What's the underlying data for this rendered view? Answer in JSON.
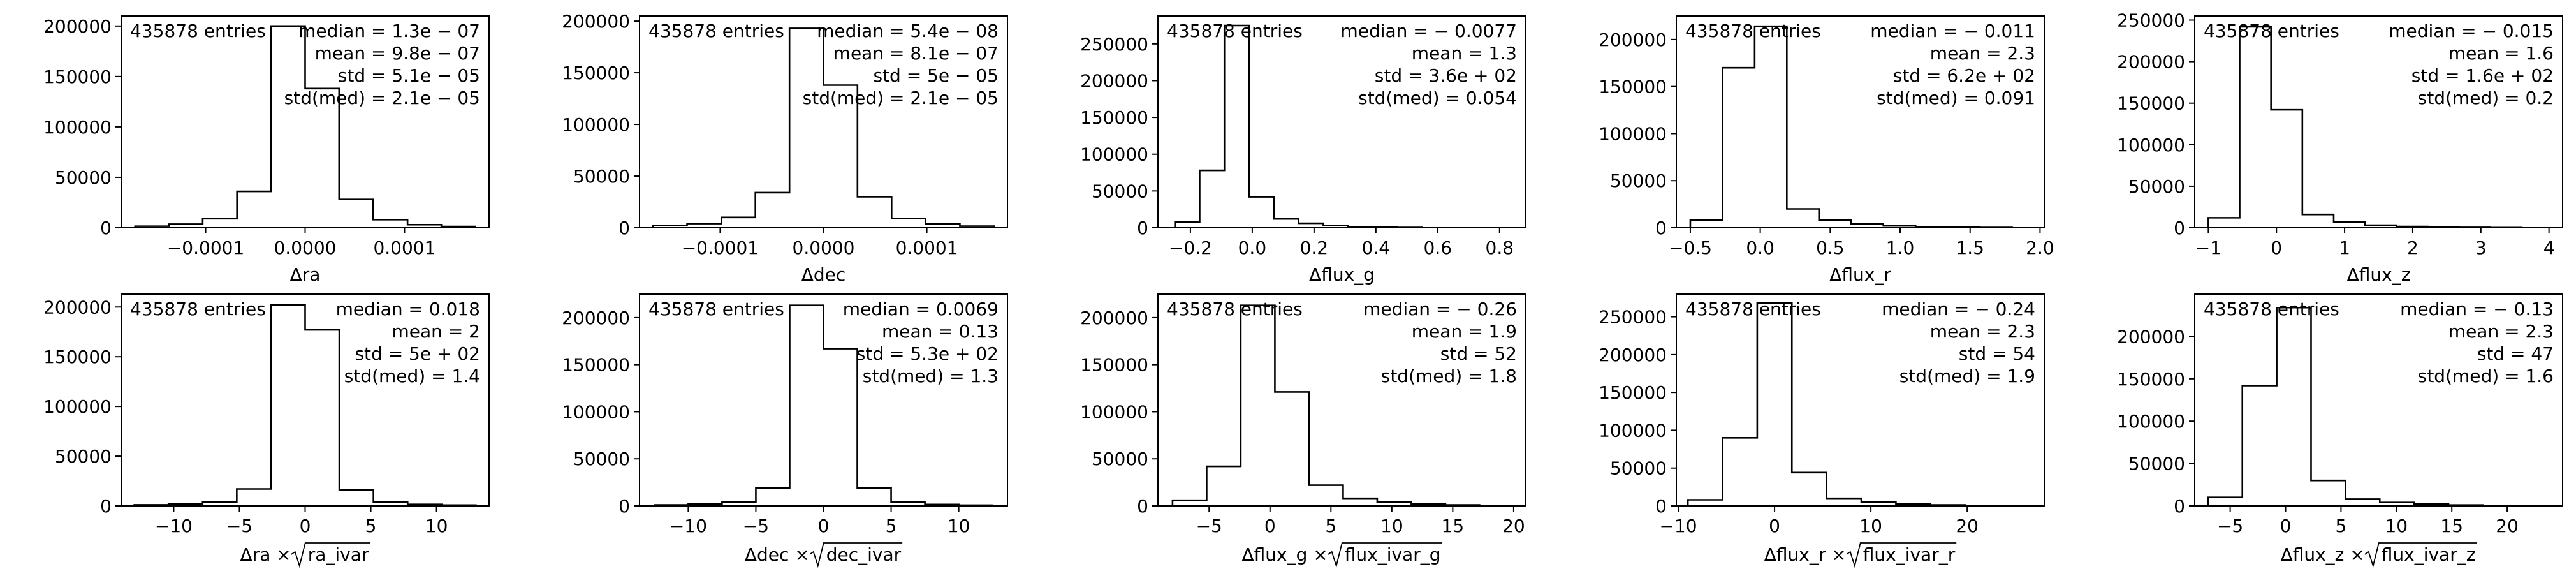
{
  "chart_data": [
    {
      "type": "histogram",
      "xlabel": "Δra",
      "xlim": [
        -0.000185,
        0.000185
      ],
      "ylim": [
        0,
        210000
      ],
      "xticks": [
        {
          "v": -0.0001,
          "label": "−0.0001"
        },
        {
          "v": 0,
          "label": "0.0000"
        },
        {
          "v": 0.0001,
          "label": "0.0001"
        }
      ],
      "yticks": [
        {
          "v": 0,
          "label": "0"
        },
        {
          "v": 50000,
          "label": "50000"
        },
        {
          "v": 100000,
          "label": "100000"
        },
        {
          "v": 150000,
          "label": "150000"
        },
        {
          "v": 200000,
          "label": "200000"
        }
      ],
      "bin_edges": [
        -0.000171,
        -0.000137,
        -0.000103,
        -6.85e-05,
        -3.42e-05,
        0,
        3.42e-05,
        6.85e-05,
        0.000103,
        0.000137,
        0.000171
      ],
      "counts": [
        1500,
        3500,
        9000,
        36000,
        200000,
        138000,
        28000,
        8000,
        3000,
        1200
      ],
      "stats_left": "435878 entries",
      "stats_right": [
        "median = 1.3e − 07",
        "mean = 9.8e − 07",
        "std = 5.1e − 05",
        "std(med) = 2.1e − 05"
      ]
    },
    {
      "type": "histogram",
      "xlabel": "Δdec",
      "xlim": [
        -0.000178,
        0.000178
      ],
      "ylim": [
        0,
        205000
      ],
      "xticks": [
        {
          "v": -0.0001,
          "label": "−0.0001"
        },
        {
          "v": 0,
          "label": "0.0000"
        },
        {
          "v": 0.0001,
          "label": "0.0001"
        }
      ],
      "yticks": [
        {
          "v": 0,
          "label": "0"
        },
        {
          "v": 50000,
          "label": "50000"
        },
        {
          "v": 100000,
          "label": "100000"
        },
        {
          "v": 150000,
          "label": "150000"
        },
        {
          "v": 200000,
          "label": "200000"
        }
      ],
      "bin_edges": [
        -0.000165,
        -0.000132,
        -9.88e-05,
        -6.59e-05,
        -3.29e-05,
        0,
        3.29e-05,
        6.59e-05,
        9.88e-05,
        0.000132,
        0.000165
      ],
      "counts": [
        2000,
        4000,
        10000,
        34000,
        193000,
        138000,
        30000,
        9000,
        3500,
        1500
      ],
      "stats_left": "435878 entries",
      "stats_right": [
        "median = 5.4e − 08",
        "mean = 8.1e − 07",
        "std = 5e − 05",
        "std(med) = 2.1e − 05"
      ]
    },
    {
      "type": "histogram",
      "xlabel": "Δflux_g",
      "xlim": [
        -0.305,
        0.885
      ],
      "ylim": [
        0,
        288000
      ],
      "xticks": [
        {
          "v": -0.2,
          "label": "−0.2"
        },
        {
          "v": 0,
          "label": "0.0"
        },
        {
          "v": 0.2,
          "label": "0.2"
        },
        {
          "v": 0.4,
          "label": "0.4"
        },
        {
          "v": 0.6,
          "label": "0.6"
        },
        {
          "v": 0.8,
          "label": "0.8"
        }
      ],
      "yticks": [
        {
          "v": 0,
          "label": "0"
        },
        {
          "v": 50000,
          "label": "50000"
        },
        {
          "v": 100000,
          "label": "100000"
        },
        {
          "v": 150000,
          "label": "150000"
        },
        {
          "v": 200000,
          "label": "200000"
        },
        {
          "v": 250000,
          "label": "250000"
        }
      ],
      "bin_edges": [
        -0.25,
        -0.17,
        -0.09,
        -0.01,
        0.07,
        0.15,
        0.23,
        0.31,
        0.39,
        0.47,
        0.55
      ],
      "counts": [
        8000,
        78000,
        275000,
        42000,
        12000,
        6000,
        3000,
        1500,
        800,
        400
      ],
      "stats_left": "435878 entries",
      "stats_right": [
        "median = − 0.0077",
        "mean = 1.3",
        "std = 3.6e + 02",
        "std(med) = 0.054"
      ]
    },
    {
      "type": "histogram",
      "xlabel": "Δflux_r",
      "xlim": [
        -0.6,
        2.03
      ],
      "ylim": [
        0,
        225000
      ],
      "xticks": [
        {
          "v": -0.5,
          "label": "−0.5"
        },
        {
          "v": 0,
          "label": "0.0"
        },
        {
          "v": 0.5,
          "label": "0.5"
        },
        {
          "v": 1.0,
          "label": "1.0"
        },
        {
          "v": 1.5,
          "label": "1.5"
        },
        {
          "v": 2.0,
          "label": "2.0"
        }
      ],
      "yticks": [
        {
          "v": 0,
          "label": "0"
        },
        {
          "v": 50000,
          "label": "50000"
        },
        {
          "v": 100000,
          "label": "100000"
        },
        {
          "v": 150000,
          "label": "150000"
        },
        {
          "v": 200000,
          "label": "200000"
        }
      ],
      "bin_edges": [
        -0.5,
        -0.27,
        -0.04,
        0.19,
        0.42,
        0.65,
        0.88,
        1.11,
        1.34,
        1.57,
        1.8
      ],
      "counts": [
        8000,
        170000,
        214000,
        20000,
        8000,
        4000,
        2000,
        1000,
        500,
        300
      ],
      "stats_left": "435878 entries",
      "stats_right": [
        "median = − 0.011",
        "mean = 2.3",
        "std = 6.2e + 02",
        "std(med) = 0.091"
      ]
    },
    {
      "type": "histogram",
      "xlabel": "Δflux_z",
      "xlim": [
        -1.2,
        4.2
      ],
      "ylim": [
        0,
        255000
      ],
      "xticks": [
        {
          "v": -1,
          "label": "−1"
        },
        {
          "v": 0,
          "label": "0"
        },
        {
          "v": 1,
          "label": "1"
        },
        {
          "v": 2,
          "label": "2"
        },
        {
          "v": 3,
          "label": "3"
        },
        {
          "v": 4,
          "label": "4"
        }
      ],
      "yticks": [
        {
          "v": 0,
          "label": "0"
        },
        {
          "v": 50000,
          "label": "50000"
        },
        {
          "v": 100000,
          "label": "100000"
        },
        {
          "v": 150000,
          "label": "150000"
        },
        {
          "v": 200000,
          "label": "200000"
        },
        {
          "v": 250000,
          "label": "250000"
        }
      ],
      "bin_edges": [
        -1.0,
        -0.54,
        -0.08,
        0.38,
        0.84,
        1.3,
        1.76,
        2.22,
        2.68,
        3.14,
        3.6
      ],
      "counts": [
        12000,
        242000,
        142000,
        16000,
        7000,
        3000,
        1500,
        800,
        400,
        200
      ],
      "stats_left": "435878 entries",
      "stats_right": [
        "median = − 0.015",
        "mean = 1.6",
        "std = 1.6e + 02",
        "std(med) = 0.2"
      ]
    },
    {
      "type": "histogram",
      "xlabel_html": {
        "pre": "Δra × ",
        "sqrt": "ra_ivar"
      },
      "xlim": [
        -14,
        14
      ],
      "ylim": [
        0,
        213000
      ],
      "xticks": [
        {
          "v": -10,
          "label": "−10"
        },
        {
          "v": -5,
          "label": "−5"
        },
        {
          "v": 0,
          "label": "0"
        },
        {
          "v": 5,
          "label": "5"
        },
        {
          "v": 10,
          "label": "10"
        }
      ],
      "yticks": [
        {
          "v": 0,
          "label": "0"
        },
        {
          "v": 50000,
          "label": "50000"
        },
        {
          "v": 100000,
          "label": "100000"
        },
        {
          "v": 150000,
          "label": "150000"
        },
        {
          "v": 200000,
          "label": "200000"
        }
      ],
      "bin_edges": [
        -13,
        -10.4,
        -7.8,
        -5.2,
        -2.6,
        0,
        2.6,
        5.2,
        7.8,
        10.4,
        13
      ],
      "counts": [
        1000,
        2000,
        4000,
        17000,
        202000,
        177000,
        16000,
        4000,
        1500,
        800
      ],
      "stats_left": "435878 entries",
      "stats_right": [
        "median = 0.018",
        "mean = 2",
        "std = 5e + 02",
        "std(med) = 1.4"
      ]
    },
    {
      "type": "histogram",
      "xlabel_html": {
        "pre": "Δdec × ",
        "sqrt": "dec_ivar"
      },
      "xlim": [
        -13.6,
        13.6
      ],
      "ylim": [
        0,
        225000
      ],
      "xticks": [
        {
          "v": -10,
          "label": "−10"
        },
        {
          "v": -5,
          "label": "−5"
        },
        {
          "v": 0,
          "label": "0"
        },
        {
          "v": 5,
          "label": "5"
        },
        {
          "v": 10,
          "label": "10"
        }
      ],
      "yticks": [
        {
          "v": 0,
          "label": "0"
        },
        {
          "v": 50000,
          "label": "50000"
        },
        {
          "v": 100000,
          "label": "100000"
        },
        {
          "v": 150000,
          "label": "150000"
        },
        {
          "v": 200000,
          "label": "200000"
        }
      ],
      "bin_edges": [
        -12.5,
        -10,
        -7.5,
        -5,
        -2.5,
        0,
        2.5,
        5,
        7.5,
        10,
        12.5
      ],
      "counts": [
        1000,
        2000,
        4000,
        19000,
        213000,
        167000,
        19000,
        4000,
        1500,
        700
      ],
      "stats_left": "435878 entries",
      "stats_right": [
        "median = 0.0069",
        "mean = 0.13",
        "std = 5.3e + 02",
        "std(med) = 1.3"
      ]
    },
    {
      "type": "histogram",
      "xlabel_html": {
        "pre": "Δflux_g × ",
        "sqrt": "flux_ivar_g"
      },
      "xlim": [
        -9.2,
        21
      ],
      "ylim": [
        0,
        225000
      ],
      "xticks": [
        {
          "v": -5,
          "label": "−5"
        },
        {
          "v": 0,
          "label": "0"
        },
        {
          "v": 5,
          "label": "5"
        },
        {
          "v": 10,
          "label": "10"
        },
        {
          "v": 15,
          "label": "15"
        },
        {
          "v": 20,
          "label": "20"
        }
      ],
      "yticks": [
        {
          "v": 0,
          "label": "0"
        },
        {
          "v": 50000,
          "label": "50000"
        },
        {
          "v": 100000,
          "label": "100000"
        },
        {
          "v": 150000,
          "label": "150000"
        },
        {
          "v": 200000,
          "label": "200000"
        }
      ],
      "bin_edges": [
        -8,
        -5.2,
        -2.4,
        0.4,
        3.2,
        6,
        8.8,
        11.6,
        14.4,
        17.2,
        20
      ],
      "counts": [
        6000,
        42000,
        213000,
        121000,
        22000,
        8000,
        4000,
        2000,
        1000,
        500
      ],
      "stats_left": "435878 entries",
      "stats_right": [
        "median = − 0.26",
        "mean = 1.9",
        "std = 52",
        "std(med) = 1.8"
      ]
    },
    {
      "type": "histogram",
      "xlabel_html": {
        "pre": "Δflux_r × ",
        "sqrt": "flux_ivar_r"
      },
      "xlim": [
        -10.2,
        28
      ],
      "ylim": [
        0,
        280000
      ],
      "xticks": [
        {
          "v": -10,
          "label": "−10"
        },
        {
          "v": 0,
          "label": "0"
        },
        {
          "v": 10,
          "label": "10"
        },
        {
          "v": 20,
          "label": "20"
        }
      ],
      "yticks": [
        {
          "v": 0,
          "label": "0"
        },
        {
          "v": 50000,
          "label": "50000"
        },
        {
          "v": 100000,
          "label": "100000"
        },
        {
          "v": 150000,
          "label": "150000"
        },
        {
          "v": 200000,
          "label": "200000"
        },
        {
          "v": 250000,
          "label": "250000"
        }
      ],
      "bin_edges": [
        -9,
        -5.4,
        -1.8,
        1.8,
        5.4,
        9,
        12.6,
        16.2,
        19.8,
        23.4,
        27
      ],
      "counts": [
        8000,
        90000,
        268000,
        44000,
        10000,
        5000,
        2500,
        1200,
        600,
        300
      ],
      "stats_left": "435878 entries",
      "stats_right": [
        "median = − 0.24",
        "mean = 2.3",
        "std = 54",
        "std(med) = 1.9"
      ]
    },
    {
      "type": "histogram",
      "xlabel_html": {
        "pre": "Δflux_z × ",
        "sqrt": "flux_ivar_z"
      },
      "xlim": [
        -8.2,
        25
      ],
      "ylim": [
        0,
        250000
      ],
      "xticks": [
        {
          "v": -5,
          "label": "−5"
        },
        {
          "v": 0,
          "label": "0"
        },
        {
          "v": 5,
          "label": "5"
        },
        {
          "v": 10,
          "label": "10"
        },
        {
          "v": 15,
          "label": "15"
        },
        {
          "v": 20,
          "label": "20"
        }
      ],
      "yticks": [
        {
          "v": 0,
          "label": "0"
        },
        {
          "v": 50000,
          "label": "50000"
        },
        {
          "v": 100000,
          "label": "100000"
        },
        {
          "v": 150000,
          "label": "150000"
        },
        {
          "v": 200000,
          "label": "200000"
        }
      ],
      "bin_edges": [
        -7,
        -3.9,
        -0.8,
        2.3,
        5.4,
        8.5,
        11.6,
        14.7,
        17.8,
        20.9,
        24
      ],
      "counts": [
        10000,
        142000,
        234000,
        30000,
        8000,
        4000,
        2000,
        1000,
        500,
        250
      ],
      "stats_left": "435878 entries",
      "stats_right": [
        "median = − 0.13",
        "mean = 2.3",
        "std = 47",
        "std(med) = 1.6"
      ]
    }
  ]
}
